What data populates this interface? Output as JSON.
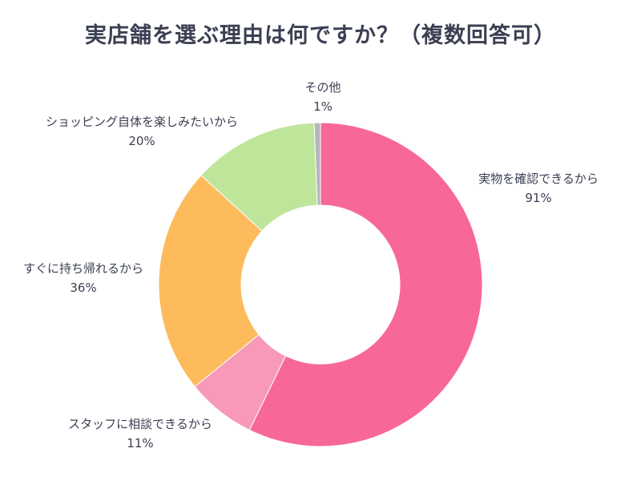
{
  "chart_data": {
    "type": "pie",
    "title": "実店舗を選ぶ理由は何ですか？（複数回答可）",
    "slices": [
      {
        "label": "実物を確認できるから",
        "value": 91,
        "value_label": "91%",
        "color": "#f76896"
      },
      {
        "label": "スタッフに相談できるから",
        "value": 11,
        "value_label": "11%",
        "color": "#f799b7"
      },
      {
        "label": "すぐに持ち帰れるから",
        "value": 36,
        "value_label": "36%",
        "color": "#fdbb5c"
      },
      {
        "label": "ショッピング自体を楽しみたいから",
        "value": 20,
        "value_label": "20%",
        "color": "#bfe59b"
      },
      {
        "label": "その他",
        "value": 1,
        "value_label": "1%",
        "color": "#b3b6bd"
      }
    ],
    "donut": true,
    "legend": "none"
  }
}
